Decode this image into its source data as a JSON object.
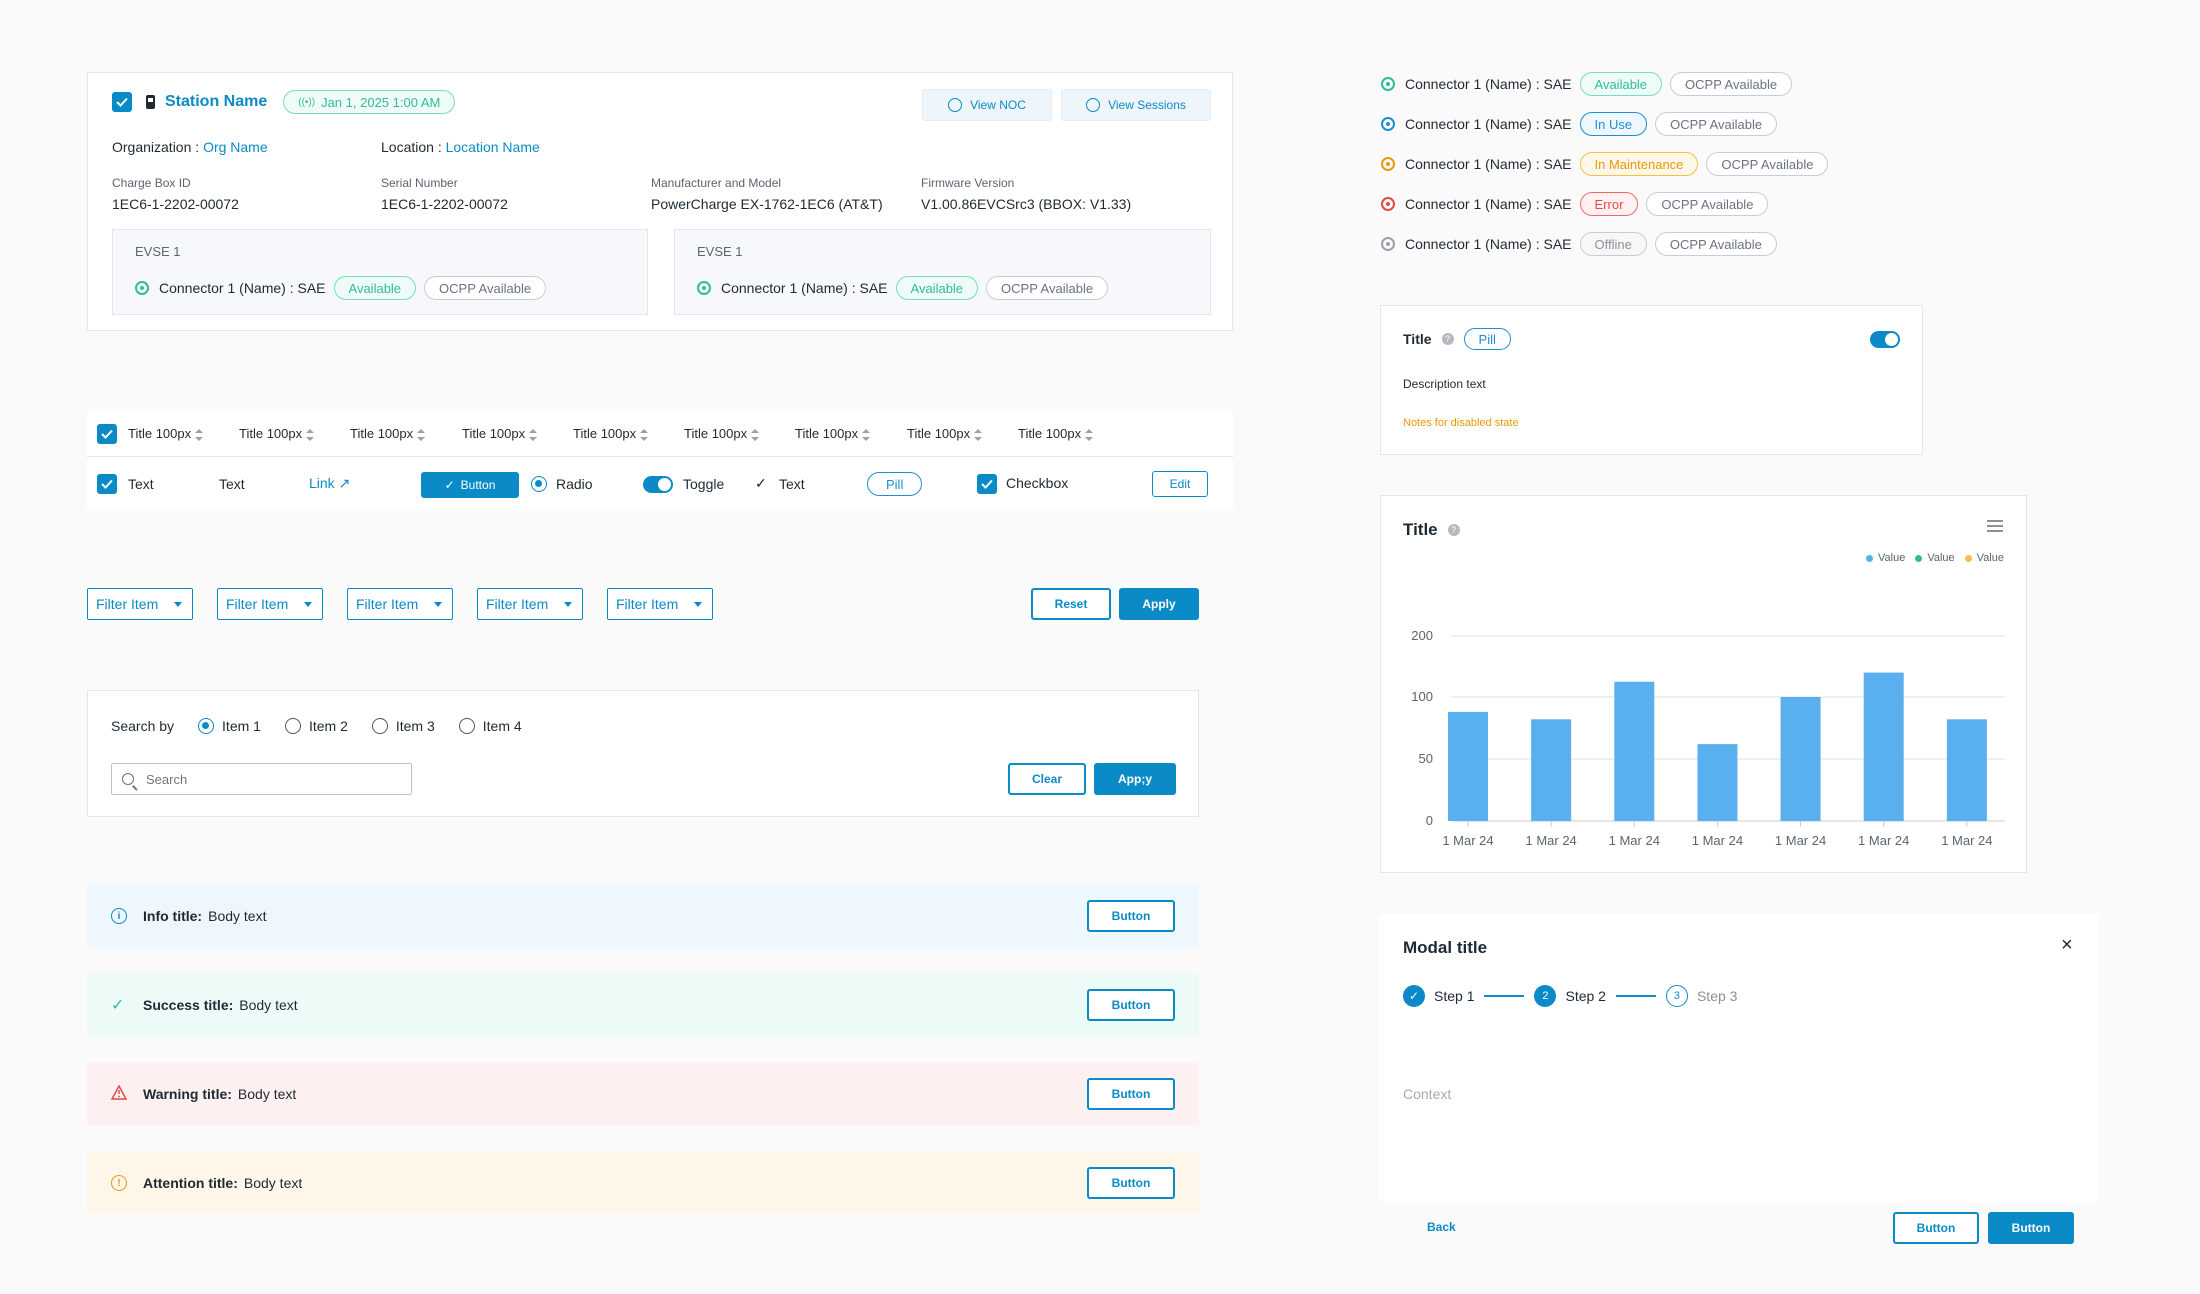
{
  "station": {
    "name": "Station Name",
    "date": "Jan 1, 2025 1:00 AM",
    "view_noc": "View NOC",
    "view_sessions": "View Sessions",
    "org_label": "Organization :",
    "org_value": "Org Name",
    "loc_label": "Location :",
    "loc_value": "Location Name",
    "fields": [
      {
        "label": "Charge Box ID",
        "value": "1EC6-1-2202-00072"
      },
      {
        "label": "Serial Number",
        "value": "1EC6-1-2202-00072"
      },
      {
        "label": "Manufacturer and Model",
        "value": "PowerCharge EX-1762-1EC6 (AT&T)"
      },
      {
        "label": "Firmware Version",
        "value": "V1.00.86EVCSrc3 (BBOX: V1.33)"
      }
    ],
    "evse": [
      {
        "title": "EVSE 1",
        "connector": "Connector 1 (Name) : SAE",
        "status": "Available",
        "ocpp": "OCPP Available"
      },
      {
        "title": "EVSE 1",
        "connector": "Connector 1 (Name) : SAE",
        "status": "Available",
        "ocpp": "OCPP Available"
      }
    ]
  },
  "connectors": [
    {
      "label": "Connector 1 (Name) : SAE",
      "status": "Available",
      "ocpp": "OCPP Available",
      "color": "#2fbd98"
    },
    {
      "label": "Connector 1 (Name) : SAE",
      "status": "In Use",
      "ocpp": "OCPP Available",
      "color": "#1e8ed0"
    },
    {
      "label": "Connector 1 (Name) : SAE",
      "status": "In Maintenance",
      "ocpp": "OCPP Available",
      "color": "#e89a0a"
    },
    {
      "label": "Connector 1 (Name) : SAE",
      "status": "Error",
      "ocpp": "OCPP Available",
      "color": "#e54848"
    },
    {
      "label": "Connector 1 (Name) : SAE",
      "status": "Offline",
      "ocpp": "OCPP Available",
      "color": "#9aa1a9"
    }
  ],
  "table": {
    "headers": [
      "Title 100px",
      "Title 100px",
      "Title 100px",
      "Title 100px",
      "Title 100px",
      "Title 100px",
      "Title 100px",
      "Title 100px",
      "Title 100px"
    ],
    "row": {
      "text1": "Text",
      "text2": "Text",
      "link": "Link",
      "button": "Button",
      "radio": "Radio",
      "toggle": "Toggle",
      "text3": "Text",
      "pill": "Pill",
      "checkbox": "Checkbox",
      "edit": "Edit"
    }
  },
  "filters": {
    "items": [
      "Filter Item",
      "Filter Item",
      "Filter Item",
      "Filter Item",
      "Filter Item"
    ],
    "reset": "Reset",
    "apply": "Apply"
  },
  "search": {
    "label": "Search by",
    "options": [
      "Item 1",
      "Item 2",
      "Item 3",
      "Item 4"
    ],
    "placeholder": "Search",
    "clear": "Clear",
    "apply": "App;y"
  },
  "alerts": [
    {
      "type": "info",
      "title": "Info title:",
      "body": "Body text",
      "button": "Button",
      "bg": "#eef7fd",
      "color": "#0a8ac6"
    },
    {
      "type": "success",
      "title": "Success title:",
      "body": "Body text",
      "button": "Button",
      "bg": "#ecfbf7",
      "color": "#2fbd98"
    },
    {
      "type": "warning",
      "title": "Warning title:",
      "body": "Body text",
      "button": "Button",
      "bg": "#fdf0f0",
      "color": "#e54848"
    },
    {
      "type": "attention",
      "title": "Attention title:",
      "body": "Body text",
      "button": "Button",
      "bg": "#fef6e8",
      "color": "#e89a0a"
    }
  ],
  "setting_card": {
    "title": "Title",
    "pill": "Pill",
    "description": "Description text",
    "note": "Notes for disabled state",
    "toggle_on": true
  },
  "chart_data": {
    "type": "bar",
    "title": "Title",
    "legend": [
      "Value",
      "Value",
      "Value"
    ],
    "legend_colors": [
      "#4fb3ea",
      "#2fbd98",
      "#f3be4d"
    ],
    "yticks": [
      0,
      50,
      100,
      200
    ],
    "categories": [
      "1 Mar 24",
      "1 Mar 24",
      "1 Mar 24",
      "1 Mar 24",
      "1 Mar 24",
      "1 Mar 24",
      "1 Mar 24"
    ],
    "values": [
      88,
      82,
      125,
      62,
      100,
      140,
      82
    ],
    "bar_color": "#5aafee"
  },
  "modal": {
    "title": "Modal title",
    "steps": [
      "Step 1",
      "Step 2",
      "Step 3"
    ],
    "step_numbers": [
      "2",
      "3"
    ],
    "context": "Context",
    "back": "Back",
    "button1": "Button",
    "button2": "Button"
  }
}
